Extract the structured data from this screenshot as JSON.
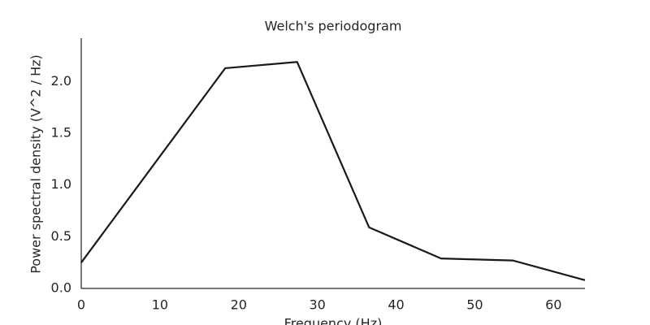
{
  "chart_data": {
    "type": "line",
    "title": "Welch's periodogram",
    "x_label": "Frequency (Hz)",
    "y_label": "Power spectral density (V^2 / Hz)",
    "x": [
      0,
      9.14,
      18.29,
      27.43,
      36.57,
      45.71,
      54.86,
      64
    ],
    "series": [
      {
        "color": "#1a1a1a",
        "values": [
          0.25,
          1.19,
          2.13,
          2.19,
          0.59,
          0.29,
          0.27,
          0.08
        ]
      }
    ],
    "xlim": [
      0,
      64
    ],
    "xticks": [
      0,
      10,
      20,
      30,
      40,
      50,
      60
    ],
    "ylim": [
      0,
      2.42
    ],
    "yticks": [
      {
        "value": 0,
        "label": "0.0"
      },
      {
        "value": 0.5,
        "label": "0.5"
      },
      {
        "value": 1,
        "label": "1.0"
      },
      {
        "value": 1.5,
        "label": "1.5"
      },
      {
        "value": 2,
        "label": "2.0"
      }
    ]
  }
}
